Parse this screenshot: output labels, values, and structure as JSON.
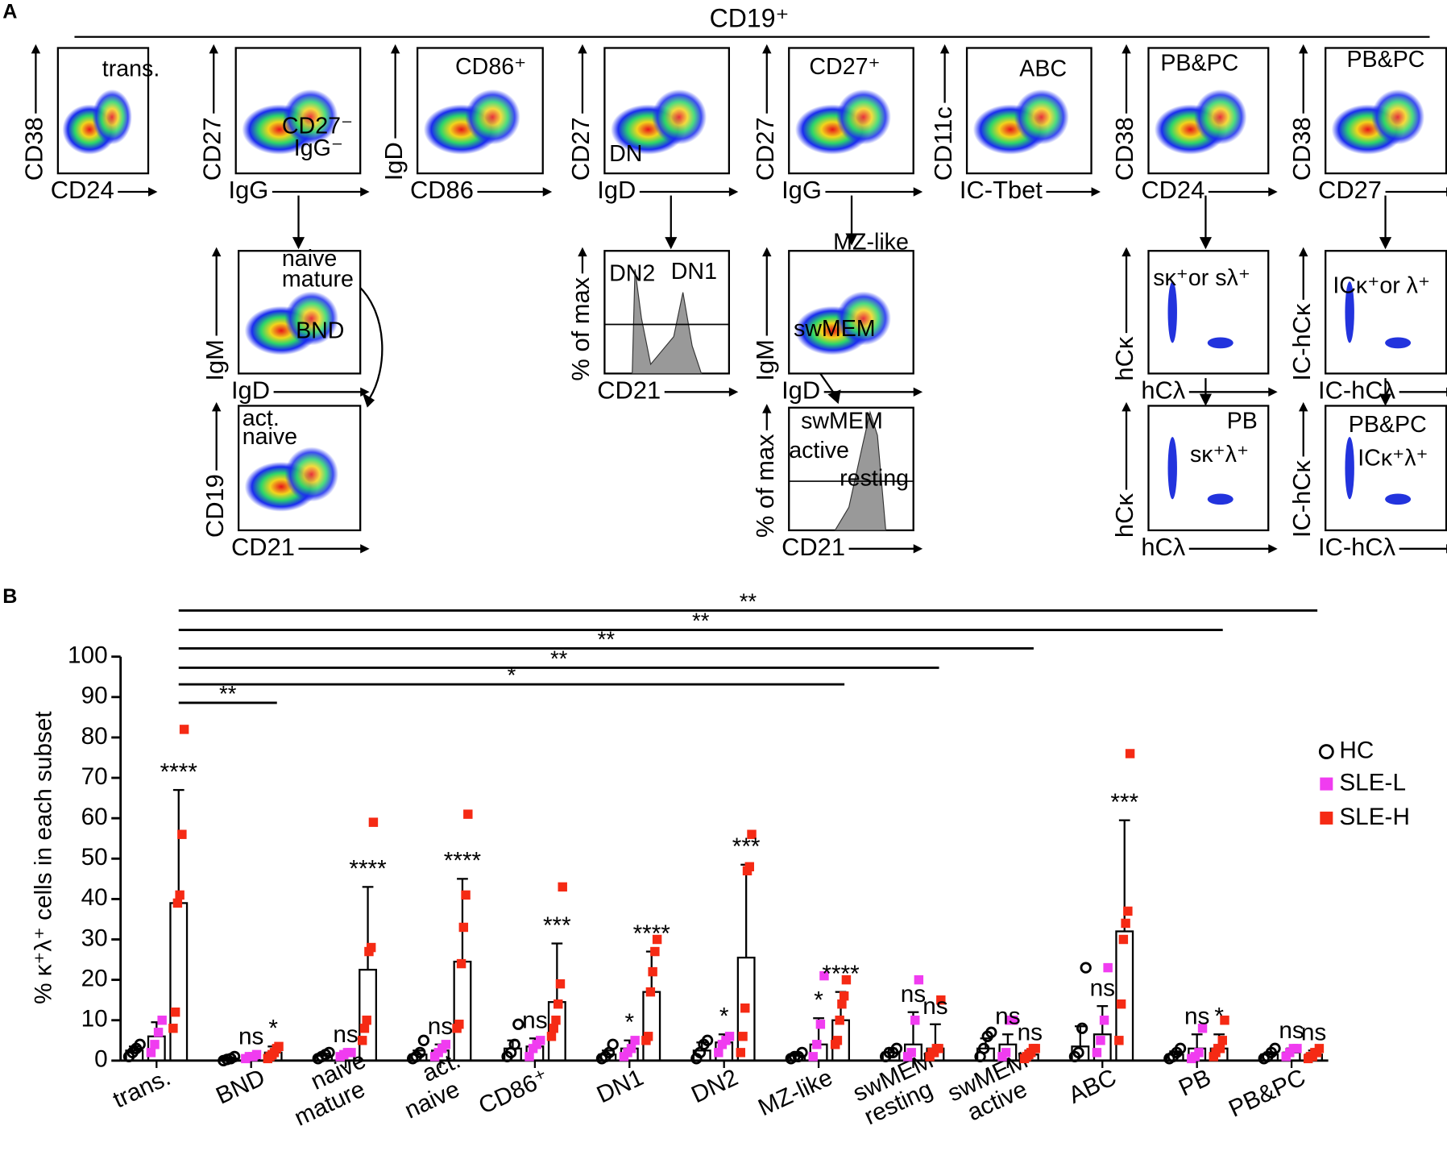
{
  "panel_a": {
    "label": "A",
    "header": "CD19⁺",
    "plots": [
      {
        "x_label": "CD24",
        "y_label": "CD38",
        "gates": [
          "trans."
        ]
      },
      {
        "x_label": "IgG",
        "y_label": "CD27",
        "gates": [
          "CD27⁻",
          "IgG⁻"
        ]
      },
      {
        "x_label": "CD86",
        "y_label": "IgD",
        "gates": [
          "CD86⁺"
        ]
      },
      {
        "x_label": "IgD",
        "y_label": "CD27",
        "gates": [
          "DN"
        ]
      },
      {
        "x_label": "IgG",
        "y_label": "CD27",
        "gates": [
          "CD27⁺"
        ]
      },
      {
        "x_label": "IC-Tbet",
        "y_label": "CD11c",
        "gates": [
          "ABC"
        ]
      },
      {
        "x_label": "CD24",
        "y_label": "CD38",
        "gates": [
          "PB&PC"
        ]
      },
      {
        "x_label": "CD27",
        "y_label": "CD38",
        "gates": [
          "PB&PC"
        ]
      },
      {
        "x_label": "IgD",
        "y_label": "IgM",
        "gates": [
          "naive",
          "mature",
          "BND"
        ]
      },
      {
        "x_label": "CD21",
        "y_label": "% of max",
        "gates": [
          "DN2",
          "DN1"
        ]
      },
      {
        "x_label": "IgD",
        "y_label": "IgM",
        "gates": [
          "MZ-like",
          "swMEM"
        ]
      },
      {
        "x_label": "hCλ",
        "y_label": "hCκ",
        "gates": [
          "sκ⁺or sλ⁺"
        ]
      },
      {
        "x_label": "IC-hCλ",
        "y_label": "IC-hCκ",
        "gates": [
          "ICκ⁺or λ⁺"
        ]
      },
      {
        "x_label": "CD21",
        "y_label": "CD19",
        "gates": [
          "act.",
          "naive"
        ]
      },
      {
        "x_label": "CD21",
        "y_label": "% of max",
        "gates": [
          "swMEM",
          "active",
          "resting"
        ]
      },
      {
        "x_label": "hCλ",
        "y_label": "hCκ",
        "gates": [
          "PB",
          "sκ⁺λ⁺"
        ]
      },
      {
        "x_label": "IC-hCλ",
        "y_label": "IC-hCκ",
        "gates": [
          "PB&PC",
          "ICκ⁺λ⁺"
        ]
      }
    ]
  },
  "chart_data": {
    "type": "bar",
    "panel_label": "B",
    "y_label": "% κ⁺λ⁺ cells in each subset",
    "ylim": [
      0,
      100
    ],
    "yticks": [
      0,
      10,
      20,
      30,
      40,
      50,
      60,
      70,
      80,
      90,
      100
    ],
    "categories": [
      "trans.",
      "BND",
      "naive mature",
      "act. naive",
      "CD86⁺",
      "DN1",
      "DN2",
      "MZ-like",
      "swMEM resting",
      "swMEM active",
      "ABC",
      "PB",
      "PB&PC"
    ],
    "series": [
      {
        "name": "HC",
        "color": "#000000",
        "values": [
          2.5,
          0.5,
          1.2,
          1.5,
          3,
          1.5,
          2.5,
          1.2,
          2,
          3,
          3.5,
          1.5,
          1.5
        ],
        "errors": [
          1,
          0.3,
          0.5,
          1,
          2,
          1,
          2,
          0.5,
          1,
          2.5,
          5,
          0.8,
          0.5
        ],
        "points": [
          [
            1,
            2,
            3,
            4
          ],
          [
            0,
            0.3,
            0.5,
            1
          ],
          [
            0.5,
            1,
            1.5,
            2
          ],
          [
            0.5,
            1,
            2,
            5
          ],
          [
            1,
            2,
            4,
            9
          ],
          [
            0.5,
            1,
            2,
            4
          ],
          [
            0.5,
            2,
            4,
            5
          ],
          [
            0.5,
            1,
            1,
            2
          ],
          [
            1,
            2,
            2,
            3
          ],
          [
            1,
            3,
            6,
            7
          ],
          [
            1,
            2,
            8,
            23
          ],
          [
            0.5,
            1,
            2,
            3
          ],
          [
            0.5,
            1,
            2,
            3
          ]
        ],
        "labels": [
          null,
          null,
          null,
          null,
          null,
          null,
          null,
          null,
          null,
          null,
          null,
          null,
          null
        ]
      },
      {
        "name": "SLE-L",
        "color": "#f03cf0",
        "values": [
          6,
          1,
          1.5,
          2.5,
          3.5,
          3,
          4.5,
          4,
          4,
          4,
          6.5,
          3,
          2
        ],
        "errors": [
          3.5,
          0.5,
          0.5,
          1.5,
          2,
          2,
          2,
          6.5,
          8,
          2.5,
          7,
          3.5,
          1
        ],
        "points": [
          [
            2,
            4,
            7,
            10
          ],
          [
            0.5,
            1,
            1,
            1.5
          ],
          [
            1,
            1.5,
            2,
            2
          ],
          [
            1,
            2,
            3,
            4
          ],
          [
            1,
            3,
            4,
            5
          ],
          [
            1,
            2,
            3,
            5
          ],
          [
            2,
            4,
            5,
            6
          ],
          [
            1,
            4,
            9,
            21
          ],
          [
            1,
            2,
            10,
            20
          ],
          [
            1,
            2,
            10,
            10
          ],
          [
            2,
            5,
            10,
            23
          ],
          [
            0.5,
            1,
            2,
            8
          ],
          [
            1,
            2,
            3,
            3
          ]
        ],
        "labels": [
          null,
          "ns",
          "ns",
          "ns",
          "ns",
          "*",
          "*",
          "*",
          "ns",
          "ns",
          "ns",
          "ns",
          "ns"
        ]
      },
      {
        "name": "SLE-H",
        "color": "#f52a14",
        "values": [
          39,
          2,
          22.5,
          24.5,
          14.5,
          17,
          25.5,
          10,
          3,
          1.5,
          32,
          3,
          1.5
        ],
        "errors": [
          28,
          1.5,
          20.5,
          20.5,
          14.5,
          10,
          23,
          7,
          6,
          1,
          27.5,
          3.5,
          1
        ],
        "points": [
          [
            8,
            12,
            39,
            41,
            56,
            82
          ],
          [
            0.5,
            1,
            1.5,
            2,
            3,
            3.5
          ],
          [
            5,
            8,
            10,
            27,
            28,
            59
          ],
          [
            8,
            9,
            24,
            33,
            41,
            61
          ],
          [
            6,
            8,
            10,
            14,
            19,
            43
          ],
          [
            5,
            6,
            17,
            22,
            27,
            30
          ],
          [
            2,
            6,
            13,
            47,
            48,
            56
          ],
          [
            4,
            5,
            10,
            14,
            16,
            20
          ],
          [
            1,
            2,
            2,
            3,
            3,
            15
          ],
          [
            0.5,
            1,
            1.5,
            2,
            3,
            3
          ],
          [
            5,
            14,
            30,
            34,
            37,
            76
          ],
          [
            1,
            2,
            3,
            3,
            5,
            10
          ],
          [
            0.5,
            1,
            1,
            2,
            2,
            3
          ]
        ],
        "labels": [
          "****",
          "*",
          "****",
          "****",
          "***",
          "****",
          "***",
          "****",
          "ns",
          "ns",
          "***",
          "*",
          "ns"
        ]
      }
    ],
    "comparisons": [
      {
        "from": "trans.",
        "to": "BND",
        "label": "**"
      },
      {
        "from": "trans.",
        "to": "MZ-like",
        "label": "*"
      },
      {
        "from": "trans.",
        "to": "swMEM resting",
        "label": "**"
      },
      {
        "from": "trans.",
        "to": "swMEM active",
        "label": "**"
      },
      {
        "from": "trans.",
        "to": "PB",
        "label": "**"
      },
      {
        "from": "trans.",
        "to": "PB&PC",
        "label": "**"
      }
    ]
  }
}
